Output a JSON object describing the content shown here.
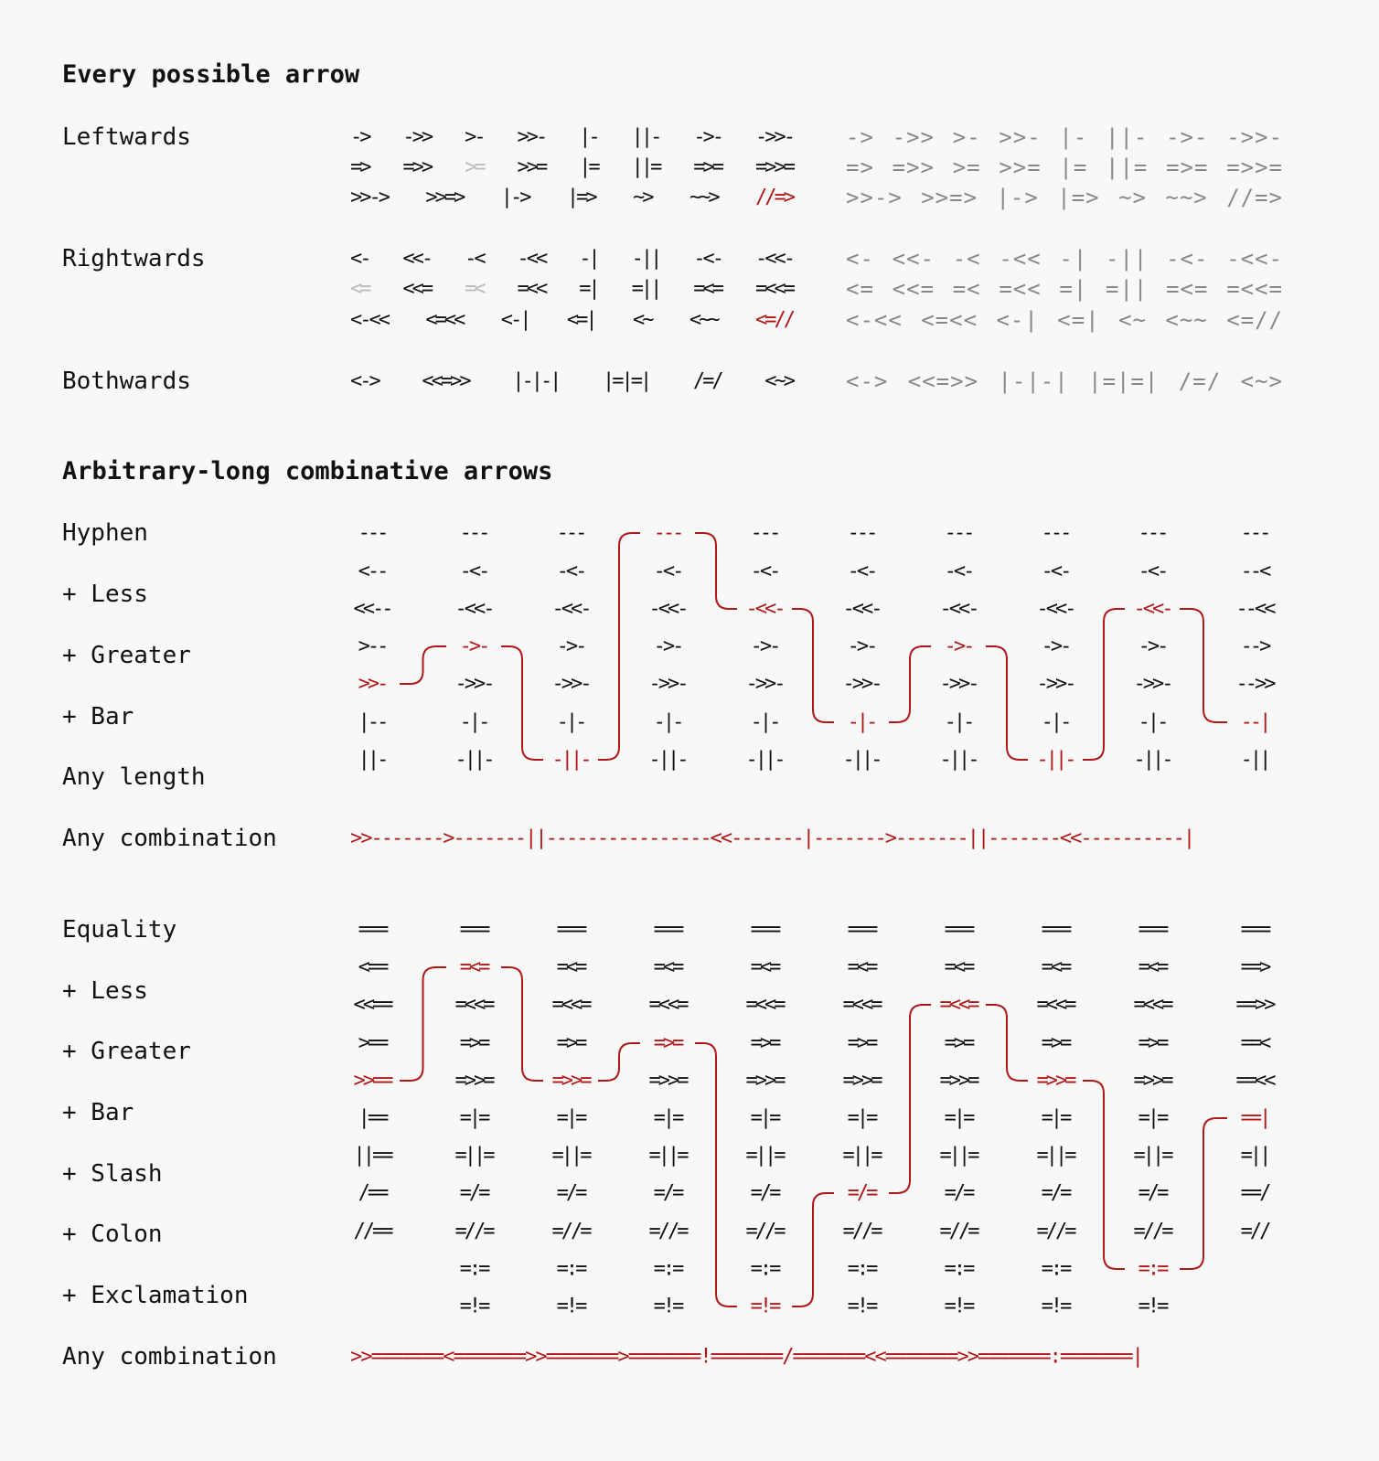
{
  "section1": {
    "title": "Every possible arrow",
    "groups": [
      {
        "label": "Leftwards",
        "rows": [
          {
            "items": [
              "->",
              "->>",
              ">-",
              ">>-",
              "|-",
              "||-",
              "->-",
              "->>-"
            ],
            "grey": [],
            "red": []
          },
          {
            "items": [
              "=>",
              "=>>",
              ">=",
              ">>=",
              "|=",
              "||=",
              "=>=",
              "=>>="
            ],
            "grey": [
              2
            ],
            "red": []
          },
          {
            "items": [
              ">>->",
              ">>=>",
              "|->",
              "|=>",
              "~>",
              "~~>",
              "//=>"
            ],
            "grey": [],
            "red": [
              6
            ]
          }
        ]
      },
      {
        "label": "Rightwards",
        "rows": [
          {
            "items": [
              "<-",
              "<<-",
              "-<",
              "-<<",
              "-|",
              "-||",
              "-<-",
              "-<<-"
            ],
            "grey": [],
            "red": []
          },
          {
            "items": [
              "<=",
              "<<=",
              "=<",
              "=<<",
              "=|",
              "=||",
              "=<=",
              "=<<="
            ],
            "grey": [
              0,
              2
            ],
            "red": []
          },
          {
            "items": [
              "<-<<",
              "<=<<",
              "<-|",
              "<=|",
              "<~",
              "<~~",
              "<=//"
            ],
            "grey": [],
            "red": [
              6
            ]
          }
        ]
      },
      {
        "label": "Bothwards",
        "rows": [
          {
            "items": [
              "<->",
              "<<=>>",
              "|-|-|",
              "|=|=|",
              "/=/",
              "<~>"
            ],
            "grey": [],
            "red": []
          }
        ]
      }
    ]
  },
  "section2": {
    "title": "Arbitrary-long combinative arrows",
    "hyphen": {
      "labels": [
        "Hyphen",
        "+ Less",
        "+ Greater",
        "+ Bar",
        "Any length",
        "Any combination"
      ],
      "grid": [
        [
          "---",
          "---",
          "---",
          "---",
          "---",
          "---",
          "---",
          "---",
          "---",
          "---"
        ],
        [
          "<--",
          "-<-",
          "-<-",
          "-<-",
          "-<-",
          "-<-",
          "-<-",
          "-<-",
          "-<-",
          "--<"
        ],
        [
          "<<--",
          "-<<-",
          "-<<-",
          "-<<-",
          "-<<-",
          "-<<-",
          "-<<-",
          "-<<-",
          "-<<-",
          "--<<"
        ],
        [
          ">--",
          "->-",
          "->-",
          "->-",
          "->-",
          "->-",
          "->-",
          "->-",
          "->-",
          "-->"
        ],
        [
          ">>-",
          "->>-",
          "->>-",
          "->>-",
          "->>-",
          "->>-",
          "->>-",
          "->>-",
          "->>-",
          "-->>"
        ],
        [
          "|--",
          "-|-",
          "-|-",
          "-|-",
          "-|-",
          "-|-",
          "-|-",
          "-|-",
          "-|-",
          "--|"
        ],
        [
          "||-",
          "-||-",
          "-||-",
          "-||-",
          "-||-",
          "-||-",
          "-||-",
          "-||-",
          "-||-",
          "-||"
        ]
      ],
      "highlight_rows": [
        4,
        3,
        6,
        0,
        2,
        5,
        3,
        6,
        2,
        5
      ],
      "combination": ">>------->-------||----------------<<-------|------->-------||-------<<----------|"
    },
    "equality": {
      "labels": [
        "Equality",
        "+ Less",
        "+ Greater",
        "+ Bar",
        "+ Slash",
        "+ Colon",
        "+ Exclamation",
        "Any combination"
      ],
      "grid": [
        [
          "===",
          "===",
          "===",
          "===",
          "===",
          "===",
          "===",
          "===",
          "===",
          "==="
        ],
        [
          "<==",
          "=<=",
          "=<=",
          "=<=",
          "=<=",
          "=<=",
          "=<=",
          "=<=",
          "=<=",
          "==>"
        ],
        [
          "<<==",
          "=<<=",
          "=<<=",
          "=<<=",
          "=<<=",
          "=<<=",
          "=<<=",
          "=<<=",
          "=<<=",
          "==>>"
        ],
        [
          ">==",
          "=>=",
          "=>=",
          "=>=",
          "=>=",
          "=>=",
          "=>=",
          "=>=",
          "=>=",
          "==<"
        ],
        [
          ">>==",
          "=>>=",
          "=>>=",
          "=>>=",
          "=>>=",
          "=>>=",
          "=>>=",
          "=>>=",
          "=>>=",
          "==<<"
        ],
        [
          "|==",
          "=|=",
          "=|=",
          "=|=",
          "=|=",
          "=|=",
          "=|=",
          "=|=",
          "=|=",
          "==|"
        ],
        [
          "||==",
          "=||=",
          "=||=",
          "=||=",
          "=||=",
          "=||=",
          "=||=",
          "=||=",
          "=||=",
          "=||"
        ],
        [
          "/==",
          "=/=",
          "=/=",
          "=/=",
          "=/=",
          "=/=",
          "=/=",
          "=/=",
          "=/=",
          "==/"
        ],
        [
          "//==",
          "=//=",
          "=//=",
          "=//=",
          "=//=",
          "=//=",
          "=//=",
          "=//=",
          "=//=",
          "=//"
        ],
        [
          "",
          "=:=",
          "=:=",
          "=:=",
          "=:=",
          "=:=",
          "=:=",
          "=:=",
          "=:=",
          ""
        ],
        [
          "",
          "=!=",
          "=!=",
          "=!=",
          "=!=",
          "=!=",
          "=!=",
          "=!=",
          "=!=",
          ""
        ]
      ],
      "highlight_rows": [
        4,
        1,
        4,
        3,
        10,
        7,
        2,
        4,
        9,
        5
      ],
      "combination": ">>=======<=======>>=======>=======!=======/=======<<=======>>=======:=======|"
    }
  },
  "colors": {
    "text": "#111111",
    "ascii": "#888888",
    "muted": "#bbbbbb",
    "highlight": "#b01818",
    "background": "#f8f8f8"
  }
}
